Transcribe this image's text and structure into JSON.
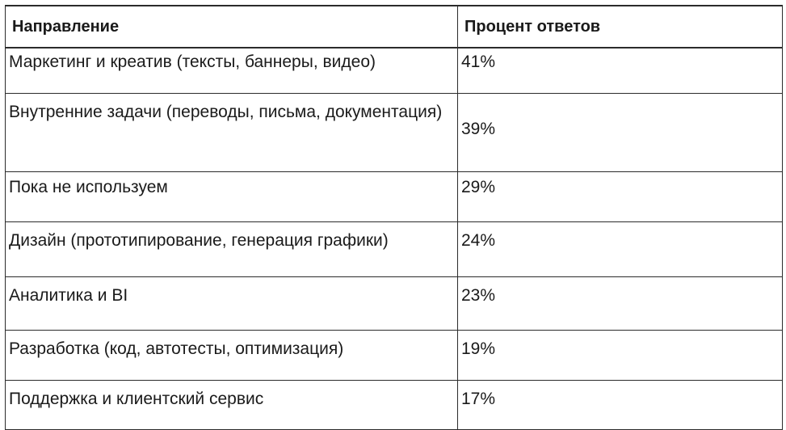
{
  "table": {
    "headers": {
      "direction": "Направление",
      "percent": "Процент ответов"
    },
    "rows": [
      {
        "direction": "Маркетинг и креатив (тексты, баннеры, видео)",
        "percent": "41%"
      },
      {
        "direction": "Внутренние задачи (переводы, письма, документация)",
        "percent": "39%"
      },
      {
        "direction": "Пока не используем",
        "percent": "29%"
      },
      {
        "direction": "Дизайн (прототипирование, генерация графики)",
        "percent": "24%"
      },
      {
        "direction": "Аналитика и BI",
        "percent": "23%"
      },
      {
        "direction": "Разработка (код, автотесты, оптимизация)",
        "percent": "19%"
      },
      {
        "direction": "Поддержка и клиентский сервис",
        "percent": "17%"
      }
    ]
  }
}
